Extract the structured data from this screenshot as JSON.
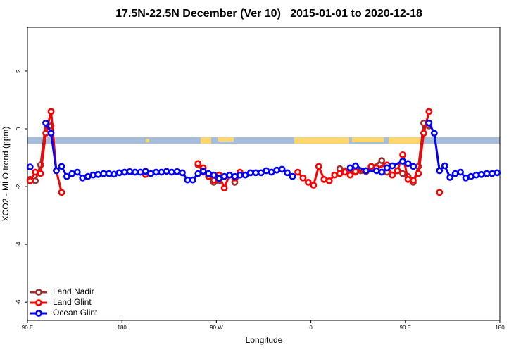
{
  "chart_data": {
    "type": "line",
    "title": "17.5N-22.5N December (Ver 10)   2015-01-01 to 2020-12-18",
    "x_label": "Longitude",
    "y_label": "XCO2 - MLO trend (ppm)",
    "xlim": [
      90,
      540
    ],
    "ylim": [
      -6.63,
      3.51
    ],
    "xticks": [
      {
        "value": 90,
        "label": "90 E"
      },
      {
        "value": 180,
        "label": "180"
      },
      {
        "value": 270,
        "label": "90 W"
      },
      {
        "value": 360,
        "label": "0"
      },
      {
        "value": 450,
        "label": "90 E"
      },
      {
        "value": 540,
        "label": "180"
      }
    ],
    "yticks": [
      -6,
      -4,
      -2,
      0,
      2
    ],
    "grid": false,
    "legend": "bottomleft",
    "series": [
      {
        "name": "Land Nadir",
        "color": "#a03030",
        "x": [
          92.5,
          97.5,
          102.5,
          107.5,
          112.5,
          null,
          252.5,
          257.5,
          262.5,
          267.5,
          272.5,
          null,
          287.5,
          292.5,
          null,
          387.5,
          392.5,
          402.5,
          407.5,
          412.5,
          417.5,
          427.5,
          432.5,
          437.5,
          442.5,
          447.5,
          452.5,
          457.5,
          462.5,
          467.5,
          472.5
        ],
        "values": [
          -1.75,
          -1.8,
          -1.25,
          0.2,
          0.1,
          null,
          -1.25,
          -1.5,
          -1.58,
          -1.85,
          -1.8,
          null,
          -1.85,
          -1.6,
          null,
          -1.38,
          -1.45,
          -1.5,
          -1.45,
          -1.48,
          -1.35,
          -1.1,
          -1.5,
          -1.6,
          -1.45,
          -1.55,
          -1.65,
          -1.85,
          -1.3,
          0.2,
          0.1
        ]
      },
      {
        "name": "Land Glint",
        "color": "#ff0000",
        "x": [
          92.5,
          97.5,
          102.5,
          107.5,
          112.5,
          117.5,
          122.5,
          null,
          202.5,
          null,
          252.5,
          257.5,
          262.5,
          267.5,
          272.5,
          277.5,
          282.5,
          287.5,
          292.5,
          null,
          347.5,
          352.5,
          357.5,
          362.5,
          367.5,
          372.5,
          377.5,
          382.5,
          387.5,
          392.5,
          397.5,
          402.5,
          412.5,
          417.5,
          422.5,
          432.5,
          437.5,
          442.5,
          447.5,
          452.5,
          457.5,
          462.5,
          467.5,
          472.5,
          null,
          482.5
        ],
        "values": [
          -1.8,
          -1.5,
          -1.55,
          -0.15,
          0.6,
          -1.45,
          -2.2,
          null,
          -1.58,
          null,
          -1.2,
          -1.35,
          -1.65,
          -1.78,
          -1.6,
          -2.05,
          -1.6,
          -1.7,
          -1.5,
          null,
          -1.5,
          -1.7,
          -1.85,
          -1.95,
          -1.3,
          -1.75,
          -1.8,
          -1.6,
          -1.55,
          -1.5,
          -1.6,
          -1.48,
          -1.45,
          -1.3,
          -1.35,
          -1.25,
          -1.6,
          -1.45,
          -0.9,
          -1.75,
          -1.78,
          -1.55,
          -0.15,
          0.6,
          null,
          -2.2
        ]
      },
      {
        "name": "Ocean Glint",
        "color": "#0000ff",
        "x": [
          92.5,
          null,
          107.5,
          112.5,
          117.5,
          122.5,
          127.5,
          132.5,
          137.5,
          142.5,
          147.5,
          152.5,
          157.5,
          162.5,
          167.5,
          172.5,
          177.5,
          182.5,
          187.5,
          192.5,
          197.5,
          202.5,
          207.5,
          212.5,
          217.5,
          222.5,
          227.5,
          232.5,
          237.5,
          242.5,
          247.5,
          252.5,
          257.5,
          262.5,
          267.5,
          272.5,
          277.5,
          282.5,
          287.5,
          292.5,
          297.5,
          302.5,
          307.5,
          312.5,
          317.5,
          322.5,
          327.5,
          332.5,
          337.5,
          342.5,
          null,
          397.5,
          402.5,
          412.5,
          422.5,
          427.5,
          432.5,
          437.5,
          447.5,
          452.5,
          457.5,
          null,
          472.5,
          477.5,
          482.5,
          487.5,
          492.5,
          497.5,
          502.5,
          507.5,
          512.5,
          517.5,
          522.5,
          527.5,
          532.5,
          537.5
        ],
        "values": [
          -1.32,
          null,
          0.2,
          -0.15,
          -1.45,
          -1.3,
          -1.65,
          -1.55,
          -1.5,
          -1.7,
          -1.65,
          -1.6,
          -1.58,
          -1.55,
          -1.55,
          -1.57,
          -1.52,
          -1.5,
          -1.48,
          -1.5,
          -1.5,
          -1.47,
          -1.55,
          -1.5,
          -1.5,
          -1.47,
          -1.5,
          -1.48,
          -1.52,
          -1.77,
          -1.77,
          -1.55,
          -1.47,
          -1.55,
          -1.6,
          -1.72,
          -1.65,
          -1.6,
          -1.65,
          -1.6,
          -1.6,
          -1.52,
          -1.52,
          -1.52,
          -1.45,
          -1.5,
          -1.43,
          -1.4,
          -1.52,
          -1.65,
          null,
          -1.35,
          -1.28,
          -1.45,
          -1.45,
          -1.5,
          -1.35,
          -1.28,
          -1.12,
          -1.2,
          -1.3,
          null,
          0.2,
          -0.15,
          -1.45,
          -1.28,
          -1.68,
          -1.55,
          -1.5,
          -1.7,
          -1.65,
          -1.6,
          -1.58,
          -1.55,
          -1.55,
          -1.52
        ]
      }
    ]
  }
}
